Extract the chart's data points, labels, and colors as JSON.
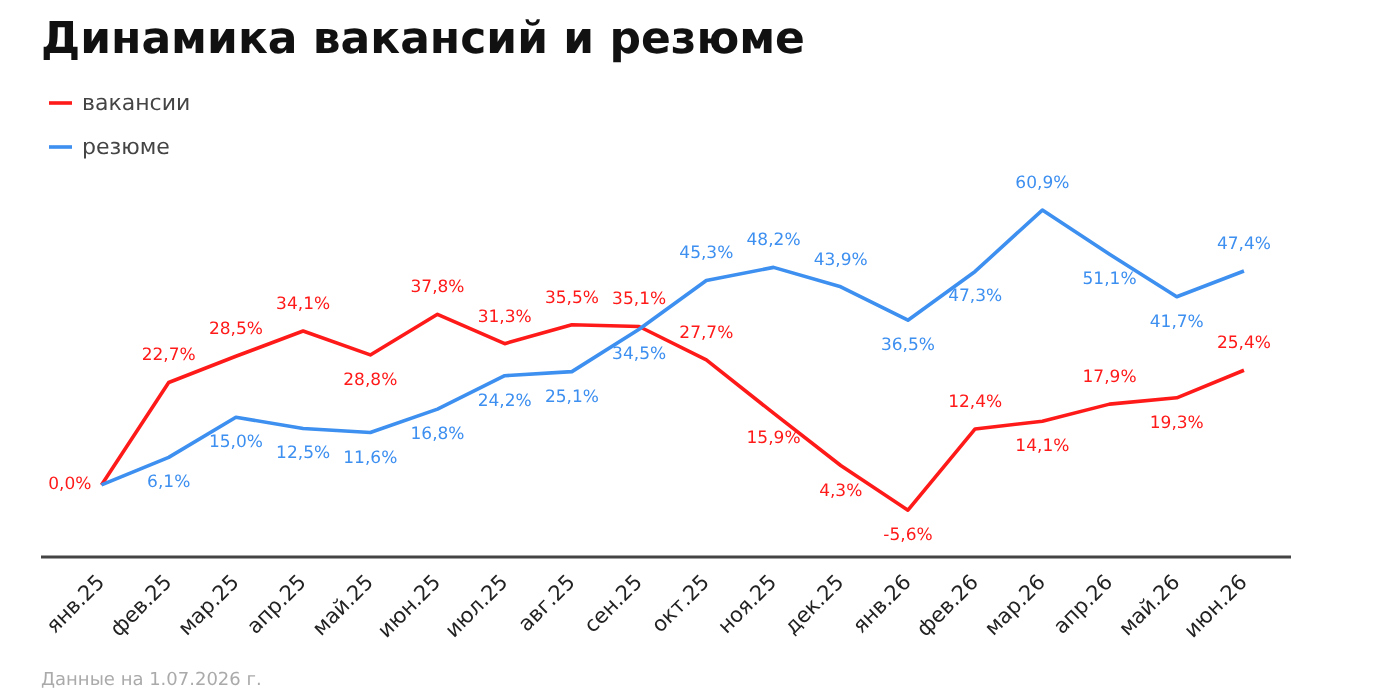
{
  "chart_data": {
    "type": "line",
    "title": "Динамика вакансий и резюме",
    "categories": [
      "янв.25",
      "фев.25",
      "мар.25",
      "апр.25",
      "май.25",
      "июн.25",
      "июл.25",
      "авг.25",
      "сен.25",
      "окт.25",
      "ноя.25",
      "дек.25",
      "янв.26",
      "фев.26",
      "мар.26",
      "апр.26",
      "май.26",
      "июн.26"
    ],
    "series": [
      {
        "name": "вакансии",
        "color": "#ff1a1a",
        "values": [
          0.0,
          22.7,
          28.5,
          34.1,
          28.8,
          37.8,
          31.3,
          35.5,
          35.1,
          27.7,
          15.9,
          4.3,
          -5.6,
          12.4,
          14.1,
          17.9,
          19.3,
          25.4
        ],
        "value_labels": [
          "0,0%",
          "22,7%",
          "28,5%",
          "34,1%",
          "28,8%",
          "37,8%",
          "31,3%",
          "35,5%",
          "35,1%",
          "27,7%",
          "15,9%",
          "4,3%",
          "-5,6%",
          "12,4%",
          "14,1%",
          "17,9%",
          "19,3%",
          "25,4%"
        ]
      },
      {
        "name": "резюме",
        "color": "#3d8ff0",
        "values": [
          0.0,
          6.1,
          15.0,
          12.5,
          11.6,
          16.8,
          24.2,
          25.1,
          34.5,
          45.3,
          48.2,
          43.9,
          36.5,
          47.3,
          60.9,
          51.1,
          41.7,
          47.4
        ],
        "value_labels": [
          null,
          "6,1%",
          "15,0%",
          "12,5%",
          "11,6%",
          "16,8%",
          "24,2%",
          "25,1%",
          "34,5%",
          "45,3%",
          "48,2%",
          "43,9%",
          "36,5%",
          "47,3%",
          "60,9%",
          "51,1%",
          "41,7%",
          "47,4%"
        ]
      }
    ],
    "legend": "top left",
    "grid": false,
    "marker": "none",
    "line_style": "solid",
    "annotations": [
      "Данные на 1.07.2026 г."
    ]
  }
}
